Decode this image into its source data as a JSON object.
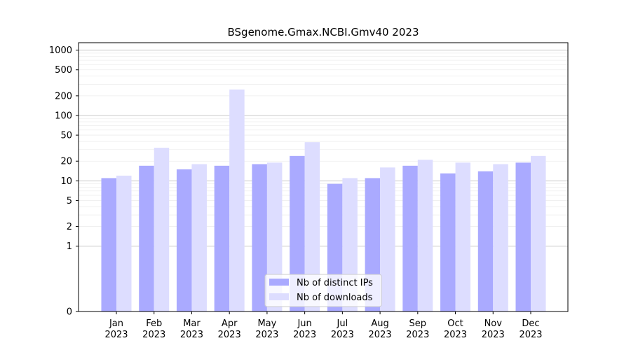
{
  "chart_data": {
    "type": "bar",
    "title": "BSgenome.Gmax.NCBI.Gmv40 2023",
    "xlabel": "",
    "ylabel": "",
    "yscale": "symlog",
    "ylim": [
      0,
      1300
    ],
    "yticks": [
      0,
      1,
      2,
      5,
      10,
      20,
      50,
      100,
      200,
      500,
      1000
    ],
    "grid": "horizontal",
    "legend_position": "bottom-center",
    "categories": [
      [
        "Jan",
        "2023"
      ],
      [
        "Feb",
        "2023"
      ],
      [
        "Mar",
        "2023"
      ],
      [
        "Apr",
        "2023"
      ],
      [
        "May",
        "2023"
      ],
      [
        "Jun",
        "2023"
      ],
      [
        "Jul",
        "2023"
      ],
      [
        "Aug",
        "2023"
      ],
      [
        "Sep",
        "2023"
      ],
      [
        "Oct",
        "2023"
      ],
      [
        "Nov",
        "2023"
      ],
      [
        "Dec",
        "2023"
      ]
    ],
    "series": [
      {
        "name": "Nb of distinct IPs",
        "color": "#aaaaff",
        "values": [
          11,
          17,
          15,
          17,
          18,
          24,
          9,
          11,
          17,
          13,
          14,
          19
        ]
      },
      {
        "name": "Nb of downloads",
        "color": "#ddddff",
        "values": [
          12,
          32,
          18,
          250,
          19,
          39,
          11,
          16,
          21,
          19,
          18,
          24
        ]
      }
    ]
  }
}
